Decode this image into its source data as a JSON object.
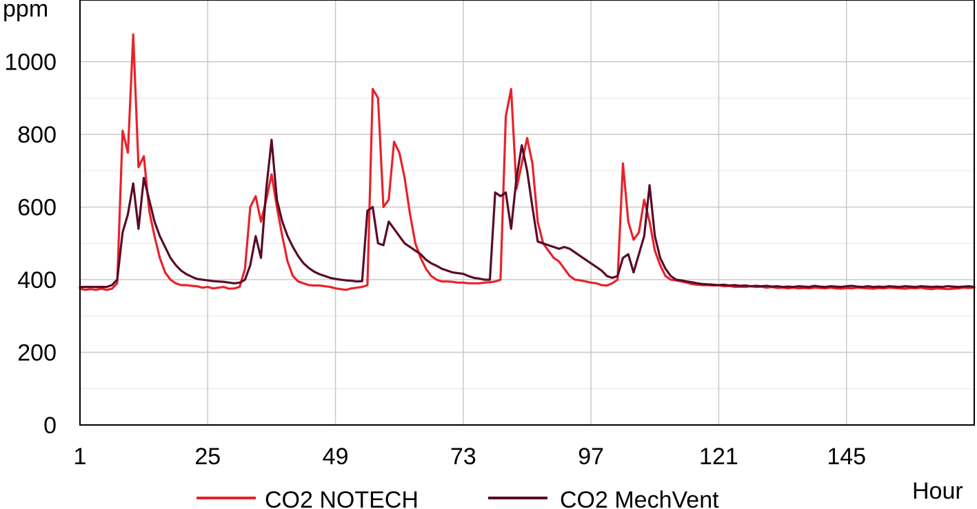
{
  "chart_data": {
    "type": "line",
    "title": "",
    "ylabel": "ppm",
    "xlabel": "Hour",
    "ylim": [
      0,
      1170
    ],
    "xlim": [
      1,
      169
    ],
    "yticks": [
      0,
      200,
      400,
      600,
      800,
      1000
    ],
    "xticks": [
      1,
      25,
      49,
      73,
      97,
      121,
      145
    ],
    "grid": true,
    "legend_position": "bottom",
    "series": [
      {
        "name": "CO2 NOTECH",
        "color": "#e8222a",
        "x": [
          1,
          2,
          3,
          4,
          5,
          6,
          7,
          8,
          9,
          10,
          11,
          12,
          13,
          14,
          15,
          16,
          17,
          18,
          19,
          20,
          21,
          22,
          23,
          24,
          25,
          26,
          27,
          28,
          29,
          30,
          31,
          32,
          33,
          34,
          35,
          36,
          37,
          38,
          39,
          40,
          41,
          42,
          43,
          44,
          45,
          46,
          47,
          48,
          49,
          50,
          51,
          52,
          53,
          54,
          55,
          56,
          57,
          58,
          59,
          60,
          61,
          62,
          63,
          64,
          65,
          66,
          67,
          68,
          69,
          70,
          71,
          72,
          73,
          74,
          75,
          76,
          77,
          78,
          79,
          80,
          81,
          82,
          83,
          84,
          85,
          86,
          87,
          88,
          89,
          90,
          91,
          92,
          93,
          94,
          95,
          96,
          97,
          98,
          99,
          100,
          101,
          102,
          103,
          104,
          105,
          106,
          107,
          108,
          109,
          110,
          111,
          112,
          113,
          114,
          115,
          116,
          117,
          118,
          119,
          120,
          121,
          122,
          123,
          124,
          125,
          126,
          127,
          128,
          129,
          130,
          131,
          132,
          133,
          134,
          135,
          136,
          137,
          138,
          139,
          140,
          141,
          142,
          143,
          144,
          145,
          146,
          147,
          148,
          149,
          150,
          151,
          152,
          153,
          154,
          155,
          156,
          157,
          158,
          159,
          160,
          161,
          162,
          163,
          164,
          165,
          166,
          167,
          168,
          169
        ],
        "y": [
          375,
          372,
          374,
          372,
          375,
          372,
          375,
          390,
          810,
          750,
          1075,
          710,
          740,
          590,
          520,
          460,
          420,
          400,
          390,
          385,
          385,
          383,
          382,
          378,
          380,
          376,
          378,
          380,
          375,
          376,
          380,
          430,
          600,
          630,
          560,
          620,
          690,
          600,
          520,
          450,
          410,
          395,
          390,
          385,
          384,
          384,
          382,
          380,
          376,
          374,
          372,
          376,
          378,
          380,
          385,
          925,
          900,
          600,
          620,
          780,
          750,
          680,
          580,
          500,
          460,
          430,
          410,
          400,
          395,
          395,
          394,
          392,
          392,
          390,
          390,
          390,
          392,
          393,
          395,
          400,
          850,
          925,
          650,
          720,
          790,
          720,
          560,
          500,
          480,
          460,
          450,
          430,
          410,
          400,
          398,
          395,
          392,
          390,
          385,
          384,
          390,
          400,
          720,
          560,
          510,
          530,
          620,
          560,
          480,
          440,
          410,
          400,
          398,
          395,
          392,
          388,
          386,
          385,
          385,
          384,
          385,
          382,
          383,
          380,
          381,
          380,
          382,
          380,
          381,
          378,
          380,
          377,
          378,
          376,
          378,
          376,
          377,
          376,
          378,
          377,
          376,
          378,
          376,
          375,
          377,
          376,
          378,
          377,
          376,
          375,
          377,
          376,
          378,
          377,
          376,
          375,
          377,
          376,
          378,
          375,
          374,
          376,
          375,
          374,
          375,
          376,
          378,
          377,
          378
        ]
      },
      {
        "name": "CO2 MechVent",
        "color": "#5a0a28",
        "x": [
          1,
          2,
          3,
          4,
          5,
          6,
          7,
          8,
          9,
          10,
          11,
          12,
          13,
          14,
          15,
          16,
          17,
          18,
          19,
          20,
          21,
          22,
          23,
          24,
          25,
          26,
          27,
          28,
          29,
          30,
          31,
          32,
          33,
          34,
          35,
          36,
          37,
          38,
          39,
          40,
          41,
          42,
          43,
          44,
          45,
          46,
          47,
          48,
          49,
          50,
          51,
          52,
          53,
          54,
          55,
          56,
          57,
          58,
          59,
          60,
          61,
          62,
          63,
          64,
          65,
          66,
          67,
          68,
          69,
          70,
          71,
          72,
          73,
          74,
          75,
          76,
          77,
          78,
          79,
          80,
          81,
          82,
          83,
          84,
          85,
          86,
          87,
          88,
          89,
          90,
          91,
          92,
          93,
          94,
          95,
          96,
          97,
          98,
          99,
          100,
          101,
          102,
          103,
          104,
          105,
          106,
          107,
          108,
          109,
          110,
          111,
          112,
          113,
          114,
          115,
          116,
          117,
          118,
          119,
          120,
          121,
          122,
          123,
          124,
          125,
          126,
          127,
          128,
          129,
          130,
          131,
          132,
          133,
          134,
          135,
          136,
          137,
          138,
          139,
          140,
          141,
          142,
          143,
          144,
          145,
          146,
          147,
          148,
          149,
          150,
          151,
          152,
          153,
          154,
          155,
          156,
          157,
          158,
          159,
          160,
          161,
          162,
          163,
          164,
          165,
          166,
          167,
          168,
          169
        ],
        "y": [
          380,
          380,
          380,
          380,
          380,
          380,
          385,
          400,
          530,
          580,
          665,
          540,
          680,
          620,
          560,
          520,
          490,
          460,
          440,
          425,
          415,
          408,
          402,
          400,
          398,
          396,
          395,
          394,
          392,
          390,
          392,
          400,
          440,
          520,
          460,
          650,
          785,
          620,
          560,
          520,
          490,
          465,
          445,
          432,
          422,
          415,
          410,
          405,
          402,
          400,
          398,
          397,
          395,
          396,
          590,
          600,
          500,
          495,
          560,
          540,
          520,
          500,
          490,
          480,
          470,
          455,
          445,
          438,
          430,
          425,
          420,
          418,
          416,
          410,
          405,
          403,
          400,
          400,
          640,
          630,
          640,
          540,
          680,
          770,
          700,
          600,
          505,
          500,
          495,
          490,
          485,
          490,
          485,
          475,
          465,
          455,
          445,
          435,
          425,
          410,
          405,
          410,
          460,
          470,
          420,
          470,
          520,
          660,
          520,
          460,
          430,
          410,
          400,
          398,
          395,
          393,
          390,
          388,
          387,
          386,
          385,
          386,
          384,
          385,
          383,
          384,
          382,
          383,
          382,
          383,
          381,
          382,
          380,
          381,
          380,
          382,
          381,
          380,
          383,
          381,
          380,
          382,
          381,
          380,
          382,
          383,
          381,
          380,
          382,
          380,
          381,
          380,
          382,
          381,
          380,
          382,
          381,
          380,
          382,
          381,
          380,
          381,
          380,
          382,
          381,
          380,
          381,
          382,
          380
        ]
      }
    ]
  }
}
